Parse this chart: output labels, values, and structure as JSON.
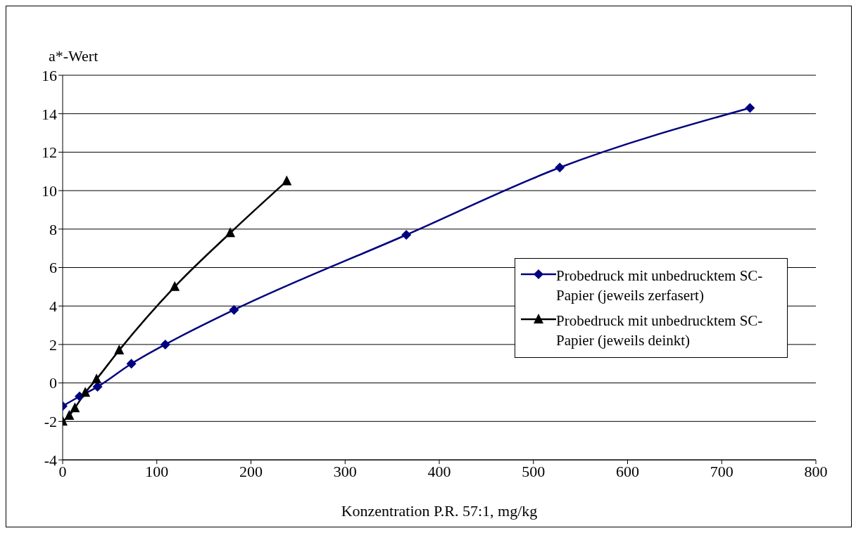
{
  "chart_data": {
    "type": "line",
    "ylabel": "a*-Wert",
    "xlabel": "Konzentration P.R. 57:1, mg/kg",
    "xlim": [
      0,
      800
    ],
    "xticks": [
      0,
      100,
      200,
      300,
      400,
      500,
      600,
      700,
      800
    ],
    "ylim": [
      -4,
      16
    ],
    "yticks": [
      -4,
      -2,
      0,
      2,
      4,
      6,
      8,
      10,
      12,
      14,
      16
    ],
    "grid": "y",
    "legend": "right",
    "series": [
      {
        "name": "Probedruck mit unbedrucktem SC-Papier (jeweils zerfasert)",
        "color": "#000080",
        "marker": "diamond",
        "x": [
          0,
          18,
          37,
          73,
          109,
          182,
          365,
          528,
          730
        ],
        "values": [
          -1.2,
          -0.7,
          -0.2,
          1.0,
          2.0,
          3.8,
          7.7,
          11.2,
          14.3
        ]
      },
      {
        "name": "Probedruck mit unbedrucktem SC-Papier (jeweils deinkt)",
        "color": "#000000",
        "marker": "triangle",
        "x": [
          0,
          7,
          13,
          24,
          36,
          60,
          119,
          178,
          238
        ],
        "values": [
          -2.0,
          -1.7,
          -1.3,
          -0.5,
          0.2,
          1.7,
          5.0,
          7.8,
          10.5
        ]
      }
    ]
  }
}
